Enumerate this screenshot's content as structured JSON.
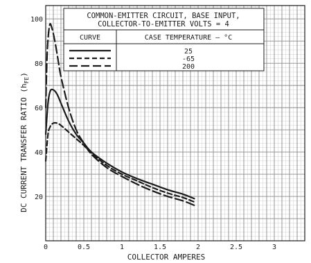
{
  "chart_data": {
    "type": "line",
    "title_line1": "COMMON-EMITTER CIRCUIT, BASE INPUT,",
    "title_line2": "COLLECTOR-TO-EMITTER VOLTS = 4",
    "xlabel": "COLLECTOR AMPERES",
    "ylabel": "DC CURRENT TRANSFER RATIO (h",
    "ylabel_sub": "FE",
    "ylabel_close": ")",
    "xlim": [
      0,
      3.4
    ],
    "ylim": [
      0,
      106
    ],
    "x_ticks": [
      {
        "value": 0,
        "label": "0"
      },
      {
        "value": 0.5,
        "label": "0.5"
      },
      {
        "value": 1,
        "label": "1"
      },
      {
        "value": 1.5,
        "label": "1.5"
      },
      {
        "value": 2,
        "label": "2"
      },
      {
        "value": 2.5,
        "label": "2.5"
      },
      {
        "value": 3,
        "label": "3"
      }
    ],
    "y_ticks": [
      {
        "value": 20,
        "label": "20"
      },
      {
        "value": 40,
        "label": "40"
      },
      {
        "value": 60,
        "label": "60"
      },
      {
        "value": 80,
        "label": "80"
      },
      {
        "value": 100,
        "label": "100"
      }
    ],
    "grid": true,
    "legend": {
      "col1_header": "CURVE",
      "col2_header": "CASE TEMPERATURE — °C",
      "placement": "top-center"
    },
    "series": [
      {
        "name": "25",
        "style": "solid",
        "x": [
          0.0,
          0.03,
          0.06,
          0.1,
          0.15,
          0.2,
          0.3,
          0.4,
          0.5,
          0.6,
          0.8,
          1.0,
          1.2,
          1.4,
          1.6,
          1.8,
          1.95
        ],
        "y": [
          48,
          62,
          67.5,
          68,
          66,
          62,
          54,
          48,
          44,
          40,
          35,
          31,
          28,
          25.5,
          23,
          21,
          19
        ]
      },
      {
        "name": "-65",
        "style": "dashed",
        "x": [
          0.0,
          0.03,
          0.06,
          0.1,
          0.15,
          0.2,
          0.3,
          0.4,
          0.5,
          0.6,
          0.8,
          1.0,
          1.2,
          1.4,
          1.6,
          1.8,
          1.95
        ],
        "y": [
          36,
          48,
          51.5,
          53,
          53,
          52,
          49,
          46,
          43,
          39.5,
          34,
          30,
          27,
          24,
          21.5,
          19.5,
          17.5
        ]
      },
      {
        "name": "200",
        "style": "long-dash",
        "x": [
          0.0,
          0.02,
          0.05,
          0.08,
          0.12,
          0.16,
          0.2,
          0.3,
          0.4,
          0.5,
          0.6,
          0.8,
          1.0,
          1.2,
          1.4,
          1.6,
          1.8,
          1.95
        ],
        "y": [
          60,
          85,
          97,
          96,
          90,
          82,
          74,
          60,
          50,
          44,
          39,
          33,
          29,
          25.5,
          22.5,
          20,
          18,
          16
        ]
      }
    ]
  }
}
